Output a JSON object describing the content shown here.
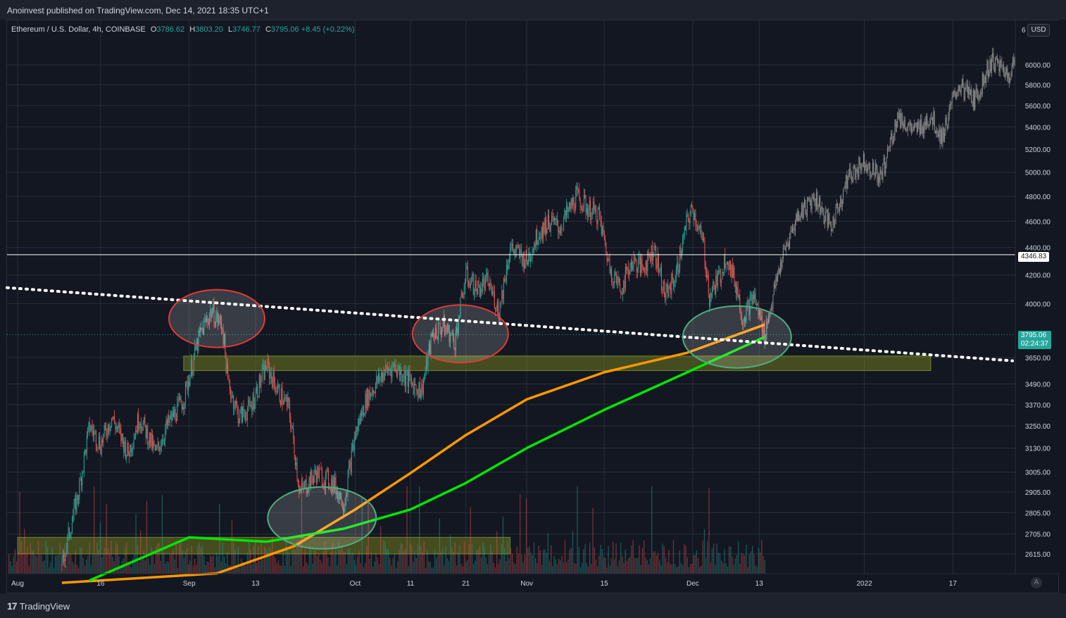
{
  "header": {
    "published": "Anoinvest published on TradingView.com, Dec 14, 2021 18:35 UTC+1"
  },
  "ticker": {
    "symbol": "Ethereum / U.S. Dollar, 4h, COINBASE",
    "o_label": "O",
    "o": "3786.62",
    "h_label": "H",
    "h": "3803.20",
    "l_label": "L",
    "l": "3746.77",
    "c_label": "C",
    "c": "3795.06",
    "change": "+8.45 (+0.22%)"
  },
  "currency_button": "USD",
  "price_tag": {
    "price": "3795.06",
    "countdown": "02:24:37"
  },
  "level_tag": "4346.83",
  "footer": {
    "brand": "TradingView",
    "auto_button": "A"
  },
  "colors": {
    "background": "#131722",
    "grid": "#2a2e39",
    "up": "#26a69a",
    "down": "#ef5350",
    "ma_orange": "#ff9800",
    "ma_green": "#00e600",
    "projection": "#8a8a8a",
    "zone_fill": "#6f7a1f",
    "circle_red": "#e53935",
    "circle_green": "#4caf80"
  },
  "chart_data": {
    "type": "candlestick",
    "symbol": "ETH/USD",
    "interval": "4h",
    "exchange": "COINBASE",
    "scale": "log",
    "grid": true,
    "y_ticks": [
      "2615.00",
      "2705.00",
      "2805.00",
      "2905.00",
      "3005.00",
      "3130.00",
      "3250.00",
      "3370.00",
      "3490.00",
      "3650.00",
      "4000.00",
      "4200.00",
      "4400.00",
      "4600.00",
      "4800.00",
      "5000.00",
      "5200.00",
      "5400.00",
      "5600.00",
      "5800.00",
      "6000.00"
    ],
    "y_top_tick_partial": "6",
    "x_ticks": [
      "Aug",
      "16",
      "Sep",
      "13",
      "Oct",
      "11",
      "21",
      "Nov",
      "15",
      "Dec",
      "13",
      "2022",
      "17"
    ],
    "price_path": [
      [
        "Aug 9",
        2560
      ],
      [
        "Aug 12",
        2900
      ],
      [
        "Aug 14",
        3250
      ],
      [
        "Aug 16",
        3150
      ],
      [
        "Aug 18",
        3300
      ],
      [
        "Aug 21",
        3100
      ],
      [
        "Aug 23",
        3300
      ],
      [
        "Aug 26",
        3100
      ],
      [
        "Aug 28",
        3250
      ],
      [
        "Aug 31",
        3400
      ],
      [
        "Sep 3",
        3800
      ],
      [
        "Sep 5",
        3950
      ],
      [
        "Sep 7",
        3850
      ],
      [
        "Sep 8",
        3500
      ],
      [
        "Sep 10",
        3300
      ],
      [
        "Sep 12",
        3350
      ],
      [
        "Sep 15",
        3600
      ],
      [
        "Sep 17",
        3450
      ],
      [
        "Sep 19",
        3350
      ],
      [
        "Sep 21",
        2900
      ],
      [
        "Sep 24",
        3000
      ],
      [
        "Sep 27",
        2950
      ],
      [
        "Sep 29",
        2850
      ],
      [
        "Oct 1",
        3200
      ],
      [
        "Oct 3",
        3400
      ],
      [
        "Oct 6",
        3550
      ],
      [
        "Oct 8",
        3600
      ],
      [
        "Oct 11",
        3500
      ],
      [
        "Oct 13",
        3450
      ],
      [
        "Oct 15",
        3800
      ],
      [
        "Oct 17",
        3850
      ],
      [
        "Oct 19",
        3750
      ],
      [
        "Oct 21",
        4200
      ],
      [
        "Oct 23",
        4100
      ],
      [
        "Oct 25",
        4150
      ],
      [
        "Oct 27",
        3950
      ],
      [
        "Oct 29",
        4400
      ],
      [
        "Nov 1",
        4300
      ],
      [
        "Nov 3",
        4500
      ],
      [
        "Nov 5",
        4600
      ],
      [
        "Nov 7",
        4550
      ],
      [
        "Nov 10",
        4800
      ],
      [
        "Nov 12",
        4700
      ],
      [
        "Nov 14",
        4650
      ],
      [
        "Nov 16",
        4250
      ],
      [
        "Nov 18",
        4100
      ],
      [
        "Nov 20",
        4300
      ],
      [
        "Nov 22",
        4250
      ],
      [
        "Nov 24",
        4400
      ],
      [
        "Nov 26",
        4050
      ],
      [
        "Nov 28",
        4200
      ],
      [
        "Nov 30",
        4600
      ],
      [
        "Dec 1",
        4700
      ],
      [
        "Dec 3",
        4400
      ],
      [
        "Dec 4",
        4050
      ],
      [
        "Dec 6",
        4200
      ],
      [
        "Dec 7",
        4350
      ],
      [
        "Dec 9",
        4100
      ],
      [
        "Dec 10",
        3900
      ],
      [
        "Dec 12",
        4050
      ],
      [
        "Dec 14",
        3795.06
      ]
    ],
    "projection_path": [
      [
        "Dec 14",
        3795
      ],
      [
        "Dec 17",
        4300
      ],
      [
        "Dec 20",
        4650
      ],
      [
        "Dec 23",
        4800
      ],
      [
        "Dec 26",
        4550
      ],
      [
        "Dec 29",
        4950
      ],
      [
        "Jan 1",
        5100
      ],
      [
        "Jan 4",
        4950
      ],
      [
        "Jan 7",
        5500
      ],
      [
        "Jan 10",
        5350
      ],
      [
        "Jan 13",
        5500
      ],
      [
        "Jan 15",
        5300
      ],
      [
        "Jan 18",
        5800
      ],
      [
        "Jan 21",
        5650
      ],
      [
        "Jan 24",
        6050
      ],
      [
        "Jan 27",
        5900
      ],
      [
        "Jan 30",
        6250
      ],
      [
        "Feb 1",
        6350
      ],
      [
        "Feb 3",
        6100
      ],
      [
        "Feb 5",
        6150
      ]
    ],
    "moving_averages": [
      {
        "color": "orange",
        "values": [
          [
            "Aug 9",
            2490
          ],
          [
            "Sep 6",
            2530
          ],
          [
            "Sep 20",
            2650
          ],
          [
            "Oct 1",
            2820
          ],
          [
            "Oct 11",
            3000
          ],
          [
            "Oct 21",
            3200
          ],
          [
            "Nov 1",
            3400
          ],
          [
            "Nov 15",
            3560
          ],
          [
            "Nov 30",
            3680
          ],
          [
            "Dec 14",
            3860
          ]
        ]
      },
      {
        "color": "green",
        "values": [
          [
            "Aug 14",
            2500
          ],
          [
            "Sep 1",
            2690
          ],
          [
            "Sep 15",
            2670
          ],
          [
            "Sep 29",
            2730
          ],
          [
            "Oct 11",
            2820
          ],
          [
            "Oct 21",
            2950
          ],
          [
            "Nov 1",
            3130
          ],
          [
            "Nov 15",
            3340
          ],
          [
            "Nov 30",
            3560
          ],
          [
            "Dec 14",
            3780
          ]
        ]
      }
    ],
    "horizontal_line": 4346.83,
    "trendline": {
      "style": "dotted",
      "from": [
        "Aug 1",
        4110
      ],
      "to": [
        "Feb 9",
        3630
      ]
    },
    "zones": [
      {
        "low": 3570,
        "high": 3660,
        "from": "Aug 31",
        "to": "Jan 13"
      },
      {
        "low": 2615,
        "high": 2690,
        "from": "Aug 1",
        "to": "Oct 29"
      }
    ],
    "circles": [
      {
        "color": "red",
        "at": "Sep 6",
        "price": 3900
      },
      {
        "color": "red",
        "at": "Oct 20",
        "price": 3800
      },
      {
        "color": "green",
        "at": "Sep 25",
        "price": 2780
      },
      {
        "color": "green",
        "at": "Dec 9",
        "price": 3780
      }
    ],
    "volume": "bars along the bottom, colored by candle direction"
  }
}
